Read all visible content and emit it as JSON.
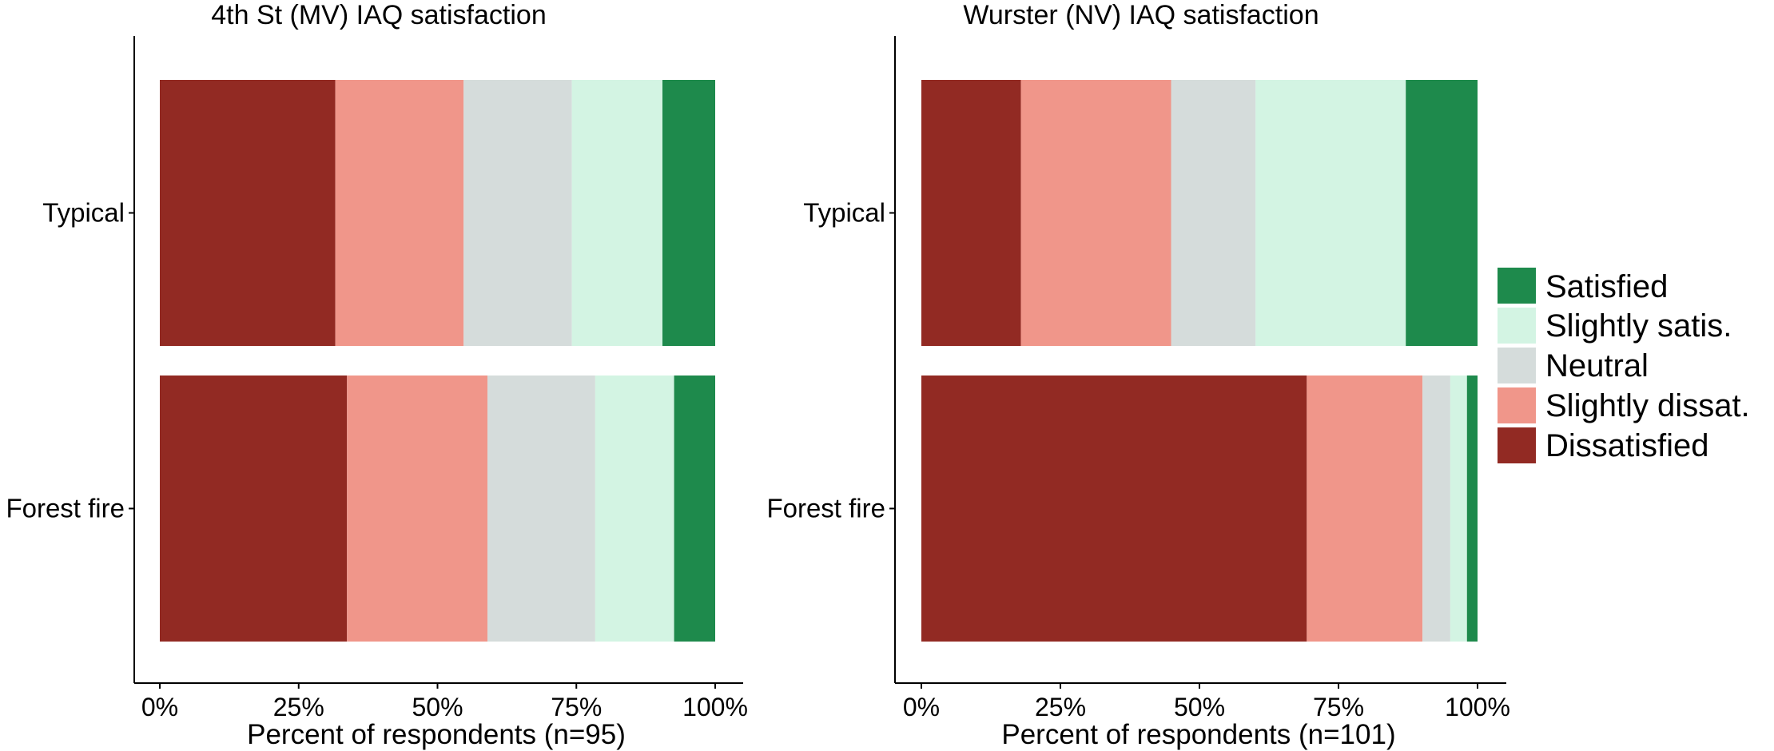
{
  "chart_data": [
    {
      "type": "bar",
      "orientation": "horizontal",
      "stacked": true,
      "title": "4th St (MV) IAQ satisfaction",
      "xlabel": "Percent of respondents (n=95)",
      "ylabel": "",
      "xlim": [
        0,
        100
      ],
      "x_ticks": [
        "0%",
        "25%",
        "50%",
        "75%",
        "100%"
      ],
      "categories": [
        "Typical",
        "Forest fire"
      ],
      "series": [
        {
          "name": "Dissatisfied",
          "values": [
            31.6,
            33.7
          ]
        },
        {
          "name": "Slightly dissat.",
          "values": [
            23.1,
            25.3
          ]
        },
        {
          "name": "Neutral",
          "values": [
            19.5,
            19.4
          ]
        },
        {
          "name": "Slightly satis.",
          "values": [
            16.3,
            14.2
          ]
        },
        {
          "name": "Satisfied",
          "values": [
            9.5,
            7.4
          ]
        }
      ],
      "grid": false
    },
    {
      "type": "bar",
      "orientation": "horizontal",
      "stacked": true,
      "title": "Wurster (NV) IAQ satisfaction",
      "xlabel": "Percent of respondents (n=101)",
      "ylabel": "",
      "xlim": [
        0,
        100
      ],
      "x_ticks": [
        "0%",
        "25%",
        "50%",
        "75%",
        "100%"
      ],
      "categories": [
        "Typical",
        "Forest fire"
      ],
      "series": [
        {
          "name": "Dissatisfied",
          "values": [
            17.9,
            69.3
          ]
        },
        {
          "name": "Slightly dissat.",
          "values": [
            27.0,
            20.8
          ]
        },
        {
          "name": "Neutral",
          "values": [
            15.2,
            5.0
          ]
        },
        {
          "name": "Slightly satis.",
          "values": [
            27.0,
            3.0
          ]
        },
        {
          "name": "Satisfied",
          "values": [
            12.9,
            1.9
          ]
        }
      ],
      "grid": false
    }
  ],
  "legend": {
    "placement": "right",
    "items": [
      {
        "label": "Satisfied",
        "color": "#1e8a4c"
      },
      {
        "label": "Slightly satis.",
        "color": "#d3f4e3"
      },
      {
        "label": "Neutral",
        "color": "#d5dcdb"
      },
      {
        "label": "Slightly dissat.",
        "color": "#f0968a"
      },
      {
        "label": "Dissatisfied",
        "color": "#922a23"
      }
    ]
  }
}
